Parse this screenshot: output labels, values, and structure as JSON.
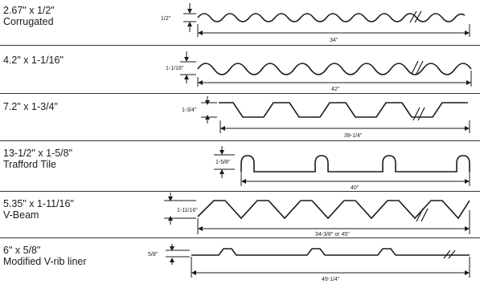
{
  "profiles": [
    {
      "id": "corrugated",
      "name_line1": "2.67\" x 1/2\"",
      "name_line2": "Corrugated",
      "height_label": "1/2\"",
      "width_label": "34\""
    },
    {
      "id": "corrugated-large",
      "name_line1": "4.2\" x 1-1/16\"",
      "name_line2": "",
      "height_label": "1-1/16\"",
      "width_label": "42\""
    },
    {
      "id": "trapezoid",
      "name_line1": "7.2\" x 1-3/4\"",
      "name_line2": "",
      "height_label": "1-3/4\"",
      "width_label": "39-1/4\""
    },
    {
      "id": "trafford-tile",
      "name_line1": "13-1/2\" x 1-5/8\"",
      "name_line2": "Trafford Tile",
      "height_label": "1-5/8\"",
      "width_label": "40\""
    },
    {
      "id": "v-beam",
      "name_line1": "5.35\" x 1-11/16\"",
      "name_line2": "V-Beam",
      "height_label": "1-11/16\"",
      "width_label": "34-3/8\" or 45\""
    },
    {
      "id": "v-rib-liner",
      "name_line1": "6\" x 5/8\"",
      "name_line2": "Modified V-rib liner",
      "height_label": "5/8\"",
      "width_label": "49-1/4\""
    }
  ],
  "colors": {
    "line": "#1a1a1a",
    "background": "#ffffff"
  }
}
